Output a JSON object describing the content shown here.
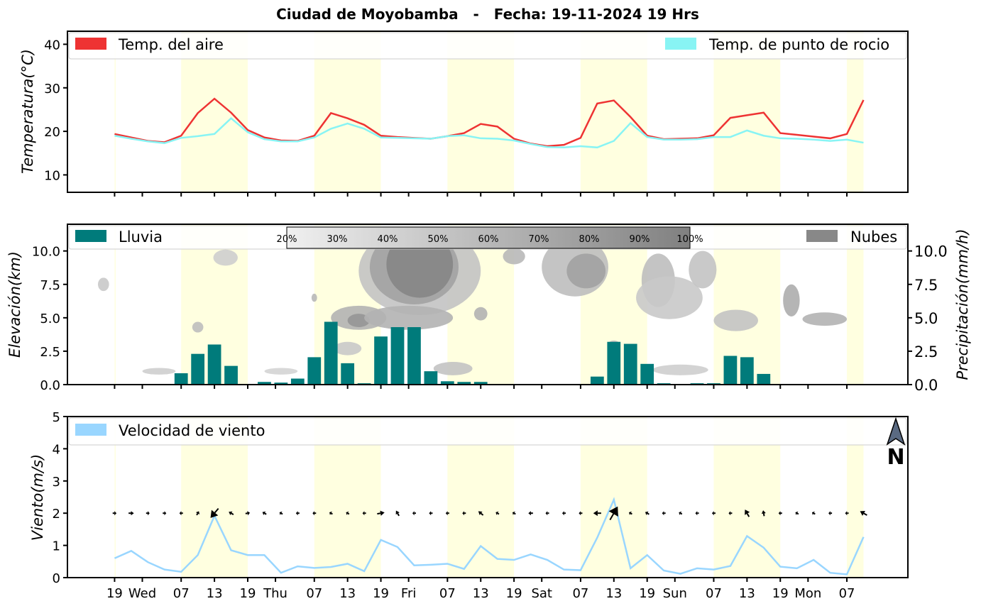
{
  "chart_data": {
    "title": "Ciudad de Moyobamba   -   Fecha: 19-11-2024 19 Hrs",
    "x_tick_labels": [
      "19",
      "Wed",
      "07",
      "13",
      "19",
      "Thu",
      "07",
      "13",
      "19",
      "Fri",
      "07",
      "13",
      "19",
      "Sat",
      "07",
      "13",
      "19",
      "Sun",
      "07",
      "13",
      "19",
      "Mon",
      "07"
    ],
    "x_tick_hours": [
      0,
      5,
      12,
      18,
      24,
      29,
      36,
      42,
      48,
      53,
      60,
      66,
      72,
      77,
      84,
      90,
      96,
      101,
      108,
      114,
      120,
      125,
      132
    ],
    "x_range_hours": [
      -8.5,
      143
    ],
    "daylight_bands": [
      [
        0,
        0.2
      ],
      [
        12,
        24
      ],
      [
        36,
        48
      ],
      [
        60,
        72
      ],
      [
        84,
        96
      ],
      [
        108,
        120
      ],
      [
        132,
        135
      ]
    ],
    "temperature": {
      "type": "line",
      "ylabel": "Temperatura(°C)",
      "ylim": [
        6,
        43
      ],
      "yticks": [
        10,
        20,
        30,
        40
      ],
      "series": [
        {
          "name": "Temp. del aire",
          "color": "#ee3333",
          "x": [
            0,
            3,
            6,
            9,
            12,
            15,
            18,
            21,
            24,
            27,
            30,
            33,
            36,
            39,
            42,
            45,
            48,
            51,
            54,
            57,
            60,
            63,
            66,
            69,
            72,
            75,
            78,
            81,
            84,
            87,
            90,
            93,
            96,
            99,
            102,
            105,
            108,
            111,
            114,
            117,
            120,
            123,
            126,
            129,
            132,
            135
          ],
          "values": [
            19.4,
            18.6,
            17.8,
            17.5,
            19,
            24.2,
            27.5,
            24.3,
            20.3,
            18.6,
            17.9,
            17.8,
            19,
            24.2,
            23,
            21.5,
            19,
            18.7,
            18.5,
            18.3,
            18.9,
            19.6,
            21.7,
            21.1,
            18.3,
            17.2,
            16.6,
            16.9,
            18.5,
            26.4,
            27.1,
            23.3,
            19,
            18.2,
            18.3,
            18.4,
            19.1,
            23.1,
            23.7,
            24.3,
            19.6,
            19.2,
            18.8,
            18.4,
            19.4,
            27.2
          ]
        },
        {
          "name": "Temp. de punto de rocio",
          "color": "#88f4f4",
          "x": [
            0,
            3,
            6,
            9,
            12,
            15,
            18,
            21,
            24,
            27,
            30,
            33,
            36,
            39,
            42,
            45,
            48,
            51,
            54,
            57,
            60,
            63,
            66,
            69,
            72,
            75,
            78,
            81,
            84,
            87,
            90,
            93,
            96,
            99,
            102,
            105,
            108,
            111,
            114,
            117,
            120,
            123,
            126,
            129,
            132,
            135
          ],
          "values": [
            19,
            18.3,
            17.7,
            17.3,
            18.5,
            18.9,
            19.4,
            23,
            19.8,
            18.2,
            17.7,
            17.7,
            18.6,
            20.6,
            21.8,
            20.6,
            18.6,
            18.5,
            18.4,
            18.3,
            18.9,
            19.1,
            18.4,
            18.3,
            17.9,
            17.1,
            16.4,
            16.3,
            16.6,
            16.3,
            17.8,
            21.9,
            18.7,
            18.1,
            18.1,
            18.2,
            18.7,
            18.7,
            20.2,
            19,
            18.4,
            18.3,
            18.1,
            17.8,
            18.1,
            17.4
          ]
        }
      ]
    },
    "rain_clouds": {
      "type": "bar",
      "ylabel_left": "Elevación(km)",
      "ylabel_right": "Precipitación(mm/h)",
      "ylim": [
        0,
        12
      ],
      "yticks_left": [
        "0.0",
        "2.5",
        "5.0",
        "7.5",
        "10.0"
      ],
      "yticks_right": [
        "0.0",
        "2.5",
        "5.0",
        "7.5",
        "10.0"
      ],
      "yticks_values": [
        0,
        2.5,
        5,
        7.5,
        10
      ],
      "rain": {
        "name": "Lluvia",
        "color": "#007b7b",
        "x": [
          3,
          6,
          9,
          12,
          15,
          18,
          21,
          24,
          27,
          30,
          33,
          36,
          39,
          42,
          45,
          48,
          51,
          54,
          57,
          60,
          63,
          66,
          69,
          72,
          87,
          90,
          93,
          96,
          99,
          102,
          105,
          108,
          111,
          114,
          117,
          120
        ],
        "values": [
          0.03,
          0.05,
          0.05,
          0.85,
          2.3,
          3,
          1.4,
          0.05,
          0.2,
          0.15,
          0.45,
          2.05,
          4.7,
          1.6,
          0.1,
          3.6,
          4.3,
          4.3,
          1,
          0.25,
          0.2,
          0.2,
          0.05,
          0.05,
          0.6,
          3.2,
          3.05,
          1.55,
          0.1,
          0.05,
          0.1,
          0.1,
          2.15,
          2.05,
          0.8,
          0.03
        ]
      },
      "clouds": {
        "name": "Nubes",
        "color": "#888888",
        "colorbar_labels": [
          "20%",
          "30%",
          "40%",
          "50%",
          "60%",
          "70%",
          "80%",
          "90%",
          "100%"
        ],
        "patches": [
          {
            "x": 20,
            "y": 9.5,
            "rx": 2.2,
            "ry": 0.6,
            "level": 0.3
          },
          {
            "x": 44,
            "y": 5,
            "rx": 5,
            "ry": 0.9,
            "level": 0.55
          },
          {
            "x": 44,
            "y": 4.8,
            "rx": 2,
            "ry": 0.5,
            "level": 0.8
          },
          {
            "x": 55,
            "y": 8.5,
            "rx": 11,
            "ry": 3.3,
            "level": 0.4
          },
          {
            "x": 54,
            "y": 8.8,
            "rx": 8,
            "ry": 2.8,
            "level": 0.7
          },
          {
            "x": 55,
            "y": 9,
            "rx": 6,
            "ry": 2.5,
            "level": 0.95
          },
          {
            "x": 53,
            "y": 5,
            "rx": 8,
            "ry": 0.9,
            "level": 0.55
          },
          {
            "x": 42,
            "y": 2.7,
            "rx": 2.5,
            "ry": 0.5,
            "level": 0.35
          },
          {
            "x": 61,
            "y": 1.2,
            "rx": 3.5,
            "ry": 0.5,
            "level": 0.4
          },
          {
            "x": 72,
            "y": 9.6,
            "rx": 2,
            "ry": 0.6,
            "level": 0.5
          },
          {
            "x": 83,
            "y": 8.8,
            "rx": 6,
            "ry": 2.2,
            "level": 0.45
          },
          {
            "x": 85,
            "y": 8.5,
            "rx": 3.5,
            "ry": 1.3,
            "level": 0.7
          },
          {
            "x": 98,
            "y": 7.8,
            "rx": 3,
            "ry": 2,
            "level": 0.45
          },
          {
            "x": 100,
            "y": 6.5,
            "rx": 6,
            "ry": 1.6,
            "level": 0.35
          },
          {
            "x": 106,
            "y": 8.6,
            "rx": 2.5,
            "ry": 1.4,
            "level": 0.4
          },
          {
            "x": 112,
            "y": 4.8,
            "rx": 4,
            "ry": 0.8,
            "level": 0.4
          },
          {
            "x": 122,
            "y": 6.3,
            "rx": 1.5,
            "ry": 1.2,
            "level": 0.6
          },
          {
            "x": 128,
            "y": 4.9,
            "rx": 4,
            "ry": 0.5,
            "level": 0.55
          },
          {
            "x": 102,
            "y": 1.1,
            "rx": 5,
            "ry": 0.4,
            "level": 0.3
          },
          {
            "x": 8,
            "y": 1,
            "rx": 3,
            "ry": 0.25,
            "level": 0.3
          },
          {
            "x": 30,
            "y": 1,
            "rx": 3,
            "ry": 0.25,
            "level": 0.25
          },
          {
            "x": -2,
            "y": 7.5,
            "rx": 1,
            "ry": 0.5,
            "level": 0.35
          },
          {
            "x": 15,
            "y": 4.3,
            "rx": 1,
            "ry": 0.4,
            "level": 0.45
          },
          {
            "x": 36,
            "y": 6.5,
            "rx": 0.5,
            "ry": 0.3,
            "level": 0.5
          },
          {
            "x": 90,
            "y": 2.9,
            "rx": 1.2,
            "ry": 0.4,
            "level": 0.45
          },
          {
            "x": 66,
            "y": 5.3,
            "rx": 1.2,
            "ry": 0.5,
            "level": 0.55
          }
        ]
      }
    },
    "wind": {
      "type": "line",
      "ylabel": "Viento(m/s)",
      "ylim": [
        0,
        5
      ],
      "yticks": [
        0,
        1,
        2,
        3,
        4,
        5
      ],
      "series": [
        {
          "name": "Velocidad de viento",
          "color": "#99d6ff",
          "x": [
            0,
            3,
            6,
            9,
            12,
            15,
            18,
            21,
            24,
            27,
            30,
            33,
            36,
            39,
            42,
            45,
            48,
            51,
            54,
            57,
            60,
            63,
            66,
            69,
            72,
            75,
            78,
            81,
            84,
            87,
            90,
            93,
            96,
            99,
            102,
            105,
            108,
            111,
            114,
            117,
            120,
            123,
            126,
            129,
            132,
            135
          ],
          "values": [
            0.6,
            0.83,
            0.48,
            0.25,
            0.18,
            0.7,
            1.92,
            0.85,
            0.7,
            0.7,
            0.15,
            0.35,
            0.3,
            0.33,
            0.43,
            0.2,
            1.17,
            0.95,
            0.38,
            0.4,
            0.43,
            0.27,
            0.98,
            0.58,
            0.55,
            0.72,
            0.55,
            0.25,
            0.23,
            1.24,
            2.42,
            0.29,
            0.7,
            0.22,
            0.12,
            0.29,
            0.25,
            0.36,
            1.29,
            0.93,
            0.34,
            0.29,
            0.55,
            0.15,
            0.1,
            1.26
          ]
        }
      ],
      "arrow_y": 2,
      "arrows": [
        {
          "x": 0,
          "dir": 90
        },
        {
          "x": 3,
          "dir": 90
        },
        {
          "x": 6,
          "dir": 90
        },
        {
          "x": 9,
          "dir": 90
        },
        {
          "x": 12,
          "dir": 270
        },
        {
          "x": 15,
          "dir": 30
        },
        {
          "x": 18,
          "dir": 220
        },
        {
          "x": 21,
          "dir": 300
        },
        {
          "x": 24,
          "dir": 80
        },
        {
          "x": 27,
          "dir": 300
        },
        {
          "x": 30,
          "dir": 300
        },
        {
          "x": 33,
          "dir": 270
        },
        {
          "x": 36,
          "dir": 270
        },
        {
          "x": 39,
          "dir": 300
        },
        {
          "x": 42,
          "dir": 300
        },
        {
          "x": 45,
          "dir": 270
        },
        {
          "x": 48,
          "dir": 80
        },
        {
          "x": 51,
          "dir": 330
        },
        {
          "x": 54,
          "dir": 270
        },
        {
          "x": 57,
          "dir": 270
        },
        {
          "x": 60,
          "dir": 270
        },
        {
          "x": 63,
          "dir": 270
        },
        {
          "x": 66,
          "dir": 310
        },
        {
          "x": 69,
          "dir": 300
        },
        {
          "x": 72,
          "dir": 300
        },
        {
          "x": 75,
          "dir": 270
        },
        {
          "x": 78,
          "dir": 270
        },
        {
          "x": 81,
          "dir": 270
        },
        {
          "x": 84,
          "dir": 270
        },
        {
          "x": 87,
          "dir": 270
        },
        {
          "x": 90,
          "dir": 30
        },
        {
          "x": 93,
          "dir": 300
        },
        {
          "x": 96,
          "dir": 300
        },
        {
          "x": 99,
          "dir": 270
        },
        {
          "x": 102,
          "dir": 300
        },
        {
          "x": 105,
          "dir": 270
        },
        {
          "x": 108,
          "dir": 270
        },
        {
          "x": 111,
          "dir": 270
        },
        {
          "x": 114,
          "dir": 330
        },
        {
          "x": 117,
          "dir": 350
        },
        {
          "x": 120,
          "dir": 270
        },
        {
          "x": 123,
          "dir": 300
        },
        {
          "x": 126,
          "dir": 300
        },
        {
          "x": 129,
          "dir": 270
        },
        {
          "x": 132,
          "dir": 270
        },
        {
          "x": 135,
          "dir": 300
        }
      ],
      "north_label": "N"
    }
  }
}
